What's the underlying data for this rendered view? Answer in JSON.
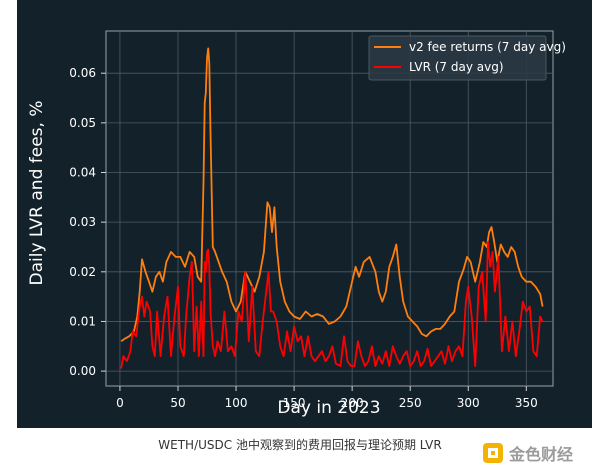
{
  "chart_data": {
    "type": "line",
    "xlabel": "Day in 2023",
    "ylabel": "Daily LVR and fees, %",
    "xlim": [
      -12,
      373
    ],
    "ylim": [
      -0.003,
      0.0685
    ],
    "xticks": [
      0,
      50,
      100,
      150,
      200,
      250,
      300,
      350
    ],
    "xtick_labels": [
      "0",
      "50",
      "100",
      "150",
      "200",
      "250",
      "300",
      "350"
    ],
    "yticks": [
      0.0,
      0.01,
      0.02,
      0.03,
      0.04,
      0.05,
      0.06
    ],
    "ytick_labels": [
      "0.00",
      "0.01",
      "0.02",
      "0.03",
      "0.04",
      "0.05",
      "0.06"
    ],
    "grid": true,
    "legend_position": "top-right",
    "series": [
      {
        "name": "v2 fee returns (7 day avg)",
        "color": "#ff7f0e",
        "x": [
          1,
          4,
          8,
          12,
          15,
          17,
          19,
          22,
          25,
          28,
          31,
          34,
          37,
          40,
          44,
          48,
          52,
          56,
          60,
          64,
          67,
          70,
          72,
          73,
          74,
          75,
          76,
          77,
          78,
          79,
          80,
          82,
          85,
          88,
          92,
          96,
          100,
          104,
          108,
          112,
          116,
          120,
          124,
          127,
          129,
          131,
          133,
          135,
          138,
          142,
          146,
          150,
          155,
          160,
          165,
          170,
          175,
          180,
          185,
          190,
          195,
          200,
          203,
          206,
          210,
          215,
          220,
          223,
          226,
          229,
          232,
          235,
          238,
          241,
          244,
          248,
          252,
          256,
          260,
          264,
          268,
          272,
          276,
          280,
          284,
          288,
          292,
          296,
          299,
          302,
          306,
          310,
          313,
          316,
          318,
          320,
          322,
          325,
          328,
          331,
          334,
          337,
          340,
          343,
          346,
          350,
          354,
          358,
          362,
          364
        ],
        "values": [
          0.006,
          0.0065,
          0.007,
          0.008,
          0.011,
          0.016,
          0.0225,
          0.02,
          0.018,
          0.016,
          0.019,
          0.02,
          0.018,
          0.022,
          0.024,
          0.023,
          0.023,
          0.021,
          0.024,
          0.023,
          0.019,
          0.018,
          0.038,
          0.054,
          0.056,
          0.063,
          0.065,
          0.062,
          0.048,
          0.036,
          0.025,
          0.024,
          0.022,
          0.02,
          0.018,
          0.014,
          0.012,
          0.014,
          0.02,
          0.018,
          0.016,
          0.019,
          0.024,
          0.034,
          0.033,
          0.028,
          0.033,
          0.025,
          0.018,
          0.014,
          0.012,
          0.011,
          0.0105,
          0.012,
          0.011,
          0.0115,
          0.011,
          0.0095,
          0.01,
          0.011,
          0.013,
          0.018,
          0.021,
          0.019,
          0.022,
          0.023,
          0.02,
          0.016,
          0.014,
          0.016,
          0.021,
          0.023,
          0.0255,
          0.019,
          0.014,
          0.011,
          0.01,
          0.009,
          0.0075,
          0.007,
          0.008,
          0.0085,
          0.0085,
          0.0095,
          0.011,
          0.012,
          0.018,
          0.0205,
          0.023,
          0.022,
          0.018,
          0.022,
          0.026,
          0.025,
          0.028,
          0.029,
          0.0265,
          0.022,
          0.0255,
          0.024,
          0.023,
          0.025,
          0.024,
          0.021,
          0.019,
          0.018,
          0.018,
          0.017,
          0.0155,
          0.013
        ]
      },
      {
        "name": "LVR (7 day avg)",
        "color": "#ff0000",
        "x": [
          1,
          3,
          6,
          9,
          11,
          14,
          17,
          19,
          21,
          23,
          26,
          28,
          30,
          32,
          35,
          38,
          41,
          44,
          47,
          50,
          52,
          55,
          57,
          60,
          62,
          64,
          66,
          68,
          70,
          72,
          73,
          74,
          75,
          76,
          77,
          78,
          80,
          82,
          84,
          87,
          90,
          93,
          96,
          99,
          102,
          105,
          108,
          111,
          114,
          117,
          120,
          123,
          126,
          128,
          130,
          132,
          135,
          138,
          141,
          144,
          147,
          150,
          153,
          156,
          159,
          162,
          165,
          168,
          171,
          174,
          177,
          180,
          183,
          186,
          190,
          193,
          196,
          199,
          202,
          205,
          208,
          211,
          214,
          217,
          220,
          223,
          226,
          229,
          232,
          235,
          238,
          241,
          244,
          247,
          250,
          253,
          256,
          259,
          262,
          265,
          268,
          271,
          274,
          277,
          280,
          283,
          286,
          289,
          292,
          295,
          298,
          300,
          303,
          306,
          309,
          312,
          315,
          317,
          319,
          321,
          323,
          326,
          329,
          332,
          335,
          338,
          341,
          344,
          347,
          350,
          353,
          356,
          359,
          362,
          364
        ],
        "values": [
          0.0005,
          0.003,
          0.002,
          0.004,
          0.008,
          0.007,
          0.013,
          0.015,
          0.011,
          0.014,
          0.012,
          0.005,
          0.003,
          0.012,
          0.003,
          0.011,
          0.015,
          0.003,
          0.011,
          0.017,
          0.005,
          0.003,
          0.011,
          0.019,
          0.022,
          0.004,
          0.013,
          0.003,
          0.014,
          0.003,
          0.022,
          0.02,
          0.024,
          0.0245,
          0.021,
          0.012,
          0.005,
          0.003,
          0.006,
          0.004,
          0.012,
          0.004,
          0.005,
          0.003,
          0.012,
          0.01,
          0.02,
          0.006,
          0.017,
          0.004,
          0.003,
          0.01,
          0.016,
          0.02,
          0.012,
          0.012,
          0.01,
          0.005,
          0.003,
          0.008,
          0.004,
          0.009,
          0.006,
          0.007,
          0.003,
          0.007,
          0.003,
          0.002,
          0.003,
          0.004,
          0.002,
          0.003,
          0.005,
          0.0015,
          0.001,
          0.007,
          0.002,
          0.001,
          0.001,
          0.006,
          0.003,
          0.001,
          0.002,
          0.005,
          0.001,
          0.003,
          0.0015,
          0.004,
          0.001,
          0.005,
          0.003,
          0.0015,
          0.003,
          0.004,
          0.001,
          0.002,
          0.004,
          0.001,
          0.002,
          0.0045,
          0.001,
          0.002,
          0.003,
          0.004,
          0.0015,
          0.005,
          0.002,
          0.004,
          0.005,
          0.003,
          0.014,
          0.017,
          0.011,
          0.001,
          0.017,
          0.02,
          0.01,
          0.026,
          0.021,
          0.024,
          0.016,
          0.023,
          0.004,
          0.011,
          0.004,
          0.01,
          0.003,
          0.008,
          0.014,
          0.012,
          0.013,
          0.004,
          0.003,
          0.011,
          0.01
        ]
      }
    ]
  },
  "caption": "WETH/USDC 池中观察到的费用回报与理论预期 LVR",
  "watermark": "金色财经"
}
